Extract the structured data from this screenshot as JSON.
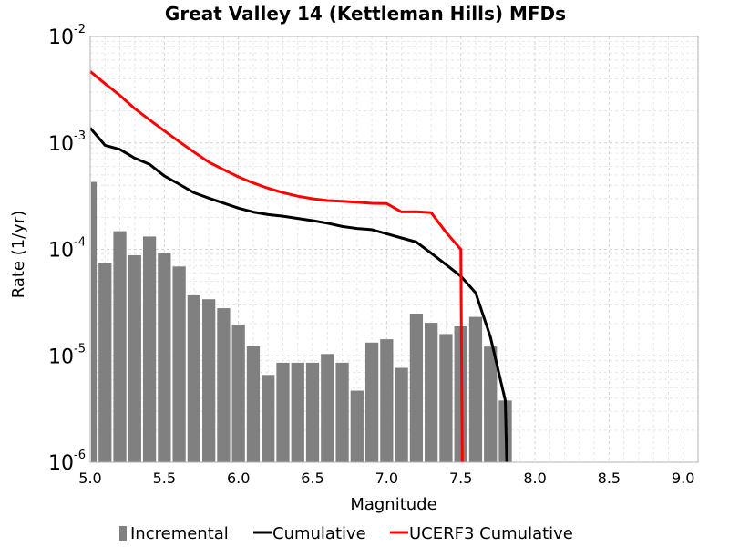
{
  "chart_data": {
    "type": "bar",
    "title": "Great Valley 14 (Kettleman Hills) MFDs",
    "xlabel": "Magnitude",
    "ylabel": "Rate (1/yr)",
    "xlim": [
      5.0,
      9.1
    ],
    "ylim": [
      1e-06,
      0.01
    ],
    "yscale": "log",
    "grid": true,
    "legend_position": "bottom",
    "x_ticks": [
      "5.0",
      "5.5",
      "6.0",
      "6.5",
      "7.0",
      "7.5",
      "8.0",
      "8.5",
      "9.0"
    ],
    "y_ticks": [
      {
        "base": "10",
        "exp": "-6",
        "value": 1e-06
      },
      {
        "base": "10",
        "exp": "-5",
        "value": 1e-05
      },
      {
        "base": "10",
        "exp": "-4",
        "value": 0.0001
      },
      {
        "base": "10",
        "exp": "-3",
        "value": 0.001
      },
      {
        "base": "10",
        "exp": "-2",
        "value": 0.01
      }
    ],
    "series": [
      {
        "name": "Incremental",
        "kind": "bar",
        "color": "#808080",
        "bin_width": 0.1,
        "x": [
          5.0,
          5.1,
          5.2,
          5.3,
          5.4,
          5.5,
          5.6,
          5.7,
          5.8,
          5.9,
          6.0,
          6.1,
          6.2,
          6.3,
          6.4,
          6.5,
          6.6,
          6.7,
          6.8,
          6.9,
          7.0,
          7.1,
          7.2,
          7.3,
          7.4,
          7.5,
          7.6,
          7.7,
          7.8
        ],
        "values": [
          0.00043,
          7.4e-05,
          0.000148,
          8.8e-05,
          0.000132,
          9.3e-05,
          6.9e-05,
          3.7e-05,
          3.4e-05,
          2.8e-05,
          1.95e-05,
          1.23e-05,
          6.6e-06,
          8.6e-06,
          8.6e-06,
          8.6e-06,
          1.04e-05,
          8.6e-06,
          4.7e-06,
          1.33e-05,
          1.43e-05,
          7.7e-06,
          2.49e-05,
          2.04e-05,
          1.6e-05,
          1.89e-05,
          2.32e-05,
          1.22e-05,
          3.8e-06
        ]
      },
      {
        "name": "Cumulative",
        "kind": "line",
        "color": "#000000",
        "x": [
          5.0,
          5.1,
          5.2,
          5.3,
          5.4,
          5.5,
          5.6,
          5.7,
          5.8,
          5.9,
          6.0,
          6.1,
          6.2,
          6.3,
          6.4,
          6.5,
          6.6,
          6.7,
          6.8,
          6.9,
          7.0,
          7.1,
          7.2,
          7.3,
          7.4,
          7.5,
          7.6,
          7.7,
          7.8,
          7.81
        ],
        "values": [
          0.00138,
          0.00095,
          0.00087,
          0.00072,
          0.00063,
          0.00049,
          0.00041,
          0.00034,
          0.000303,
          0.000272,
          0.000244,
          0.000224,
          0.000212,
          0.000205,
          0.000195,
          0.000186,
          0.000176,
          0.000164,
          0.000157,
          0.000153,
          0.00014,
          0.000128,
          0.000117,
          9.2e-05,
          7.2e-05,
          5.6e-05,
          3.9e-05,
          1.5e-05,
          3.8e-06,
          1e-06
        ]
      },
      {
        "name": "UCERF3 Cumulative",
        "kind": "line",
        "color": "#ff0000",
        "x": [
          5.0,
          5.1,
          5.2,
          5.3,
          5.4,
          5.5,
          5.6,
          5.7,
          5.8,
          5.9,
          6.0,
          6.1,
          6.2,
          6.3,
          6.4,
          6.5,
          6.6,
          6.7,
          6.8,
          6.9,
          7.0,
          7.1,
          7.2,
          7.3,
          7.4,
          7.5,
          7.51
        ],
        "values": [
          0.0047,
          0.0036,
          0.0028,
          0.0021,
          0.00165,
          0.0013,
          0.00103,
          0.00082,
          0.00066,
          0.00056,
          0.00048,
          0.00042,
          0.000375,
          0.000341,
          0.000316,
          0.000299,
          0.000287,
          0.000283,
          0.000278,
          0.000271,
          0.000269,
          0.000225,
          0.000226,
          0.000221,
          0.000145,
          0.0001,
          1e-06
        ]
      }
    ]
  }
}
